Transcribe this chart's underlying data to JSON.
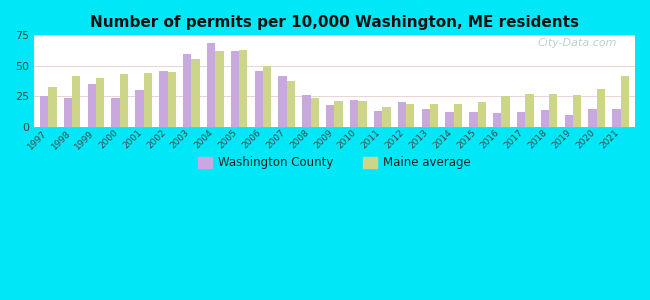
{
  "title": "Number of permits per 10,000 Washington, ME residents",
  "years": [
    1997,
    1998,
    1999,
    2000,
    2001,
    2002,
    2003,
    2004,
    2005,
    2006,
    2007,
    2008,
    2009,
    2010,
    2011,
    2012,
    2013,
    2014,
    2015,
    2016,
    2017,
    2018,
    2019,
    2020,
    2021
  ],
  "washington_county": [
    25,
    24,
    35,
    24,
    30,
    46,
    60,
    69,
    62,
    46,
    42,
    26,
    18,
    22,
    13,
    20,
    15,
    12,
    12,
    11,
    12,
    14,
    10,
    15,
    15
  ],
  "maine_average": [
    33,
    42,
    40,
    43,
    44,
    45,
    56,
    62,
    63,
    50,
    38,
    24,
    21,
    21,
    16,
    19,
    19,
    19,
    20,
    25,
    27,
    27,
    26,
    31,
    42
  ],
  "washington_color": "#c9a8e0",
  "maine_color": "#cdd688",
  "ylim": [
    0,
    75
  ],
  "yticks": [
    0,
    25,
    50,
    75
  ],
  "bg_outer": "#00e8f8",
  "bg_chart_top_color": "#f2faf2",
  "bg_chart_bottom_color": "#b8e8d8",
  "watermark": "City-Data.com",
  "bar_width": 0.35,
  "legend_washington": "Washington County",
  "legend_maine": "Maine average"
}
